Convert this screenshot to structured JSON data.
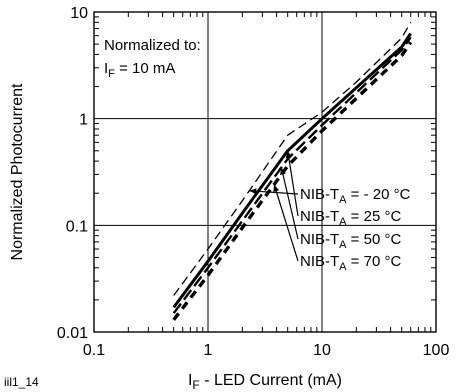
{
  "figure_id": "iil1_14",
  "chart_data": {
    "type": "line",
    "xlabel_main": "I",
    "xlabel_sub": "F",
    "xlabel_rest": " - LED Current (mA)",
    "ylabel": "Normalized Photocurrent",
    "x_scale": "log",
    "y_scale": "log",
    "xlim": [
      0.1,
      100
    ],
    "ylim": [
      0.01,
      10
    ],
    "x_ticks": [
      "0.1",
      "1",
      "10",
      "100"
    ],
    "y_ticks": [
      "0.01",
      "0.1",
      "1",
      "10"
    ],
    "grid": true,
    "annotation": {
      "line1": "Normalized to:",
      "line2_main": "I",
      "line2_sub": "F",
      "line2_rest": " = 10 mA"
    },
    "series": [
      {
        "label_main": "NIB-T",
        "label_sub": "A",
        "label_rest": " = - 20 °C",
        "style": "dashed-thin",
        "x": [
          0.5,
          1,
          2,
          5,
          10,
          20,
          50,
          60
        ],
        "y": [
          0.022,
          0.06,
          0.17,
          0.7,
          1.15,
          2.2,
          5.7,
          8.0
        ]
      },
      {
        "label_main": "NIB-T",
        "label_sub": "A",
        "label_rest": " = 25 °C",
        "style": "solid",
        "x": [
          0.5,
          1,
          2,
          5,
          10,
          20,
          50,
          60
        ],
        "y": [
          0.017,
          0.046,
          0.13,
          0.5,
          1.0,
          1.95,
          4.7,
          6.3
        ]
      },
      {
        "label_main": "NIB-T",
        "label_sub": "A",
        "label_rest": " = 50 °C",
        "style": "dashed",
        "x": [
          0.5,
          1,
          2,
          5,
          10,
          20,
          50,
          60
        ],
        "y": [
          0.015,
          0.04,
          0.11,
          0.42,
          0.87,
          1.75,
          4.4,
          5.8
        ]
      },
      {
        "label_main": "NIB-T",
        "label_sub": "A",
        "label_rest": " = 70 °C",
        "style": "dashed-thick",
        "x": [
          0.5,
          1,
          2,
          5,
          10,
          20,
          50,
          60
        ],
        "y": [
          0.013,
          0.034,
          0.095,
          0.36,
          0.77,
          1.55,
          3.9,
          5.2
        ]
      }
    ]
  }
}
